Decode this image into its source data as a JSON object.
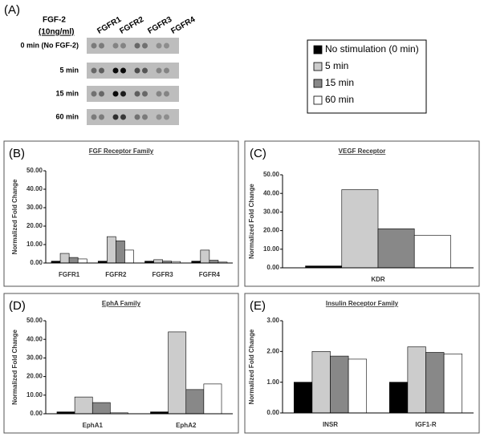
{
  "blot": {
    "panel": "(A)",
    "treatment": "FGF-2",
    "dose": "(10ng/ml)",
    "columns": [
      "FGFR1",
      "FGFR2",
      "FGFR3",
      "FGFR4"
    ],
    "rows": [
      "0 min (No FGF-2)",
      "5 min",
      "15 min",
      "60 min"
    ]
  },
  "chart_data": [
    {
      "type": "bar",
      "panel": "(B)",
      "title": "FGF Receptor Family",
      "y_label": "Normalized Fold Change",
      "categories": [
        "FGFR1",
        "FGFR2",
        "FGFR3",
        "FGFR4"
      ],
      "series": [
        {
          "name": "No stimulation (0 min)",
          "color": "#000000",
          "values": [
            1,
            1,
            1,
            1
          ]
        },
        {
          "name": "5 min",
          "color": "#cccccc",
          "values": [
            5.2,
            14.3,
            1.8,
            7
          ]
        },
        {
          "name": "15 min",
          "color": "#888888",
          "values": [
            3,
            12,
            1,
            1.5
          ]
        },
        {
          "name": "60 min",
          "color": "#ffffff",
          "values": [
            2.2,
            7,
            0.8,
            0.5
          ]
        }
      ],
      "ylim": [
        0,
        50
      ],
      "yticks": [
        {
          "value": 0,
          "label": "0.00"
        },
        {
          "value": 10,
          "label": "10.00"
        },
        {
          "value": 20,
          "label": "20.00"
        },
        {
          "value": 30,
          "label": "30.00"
        },
        {
          "value": 40,
          "label": "40.00"
        },
        {
          "value": 50,
          "label": "50.00"
        }
      ]
    },
    {
      "type": "bar",
      "panel": "(C)",
      "title": "VEGF Receptor",
      "y_label": "Normalized Fold Change",
      "categories": [
        "KDR"
      ],
      "series": [
        {
          "name": "No stimulation (0 min)",
          "color": "#000000",
          "values": [
            1
          ]
        },
        {
          "name": "5 min",
          "color": "#cccccc",
          "values": [
            42
          ]
        },
        {
          "name": "15 min",
          "color": "#888888",
          "values": [
            21
          ]
        },
        {
          "name": "60 min",
          "color": "#ffffff",
          "values": [
            17.5
          ]
        }
      ],
      "ylim": [
        0,
        50
      ],
      "yticks": [
        {
          "value": 0,
          "label": "0.00"
        },
        {
          "value": 10,
          "label": "10.00"
        },
        {
          "value": 20,
          "label": "20.00"
        },
        {
          "value": 30,
          "label": "30.00"
        },
        {
          "value": 40,
          "label": "40.00"
        },
        {
          "value": 50,
          "label": "50.00"
        }
      ]
    },
    {
      "type": "bar",
      "panel": "(D)",
      "title": "EphA Family",
      "y_label": "Normalized Fold Change",
      "categories": [
        "EphA1",
        "EphA2"
      ],
      "series": [
        {
          "name": "No stimulation (0 min)",
          "color": "#000000",
          "values": [
            1,
            1
          ]
        },
        {
          "name": "5 min",
          "color": "#cccccc",
          "values": [
            9,
            44
          ]
        },
        {
          "name": "15 min",
          "color": "#888888",
          "values": [
            6,
            13
          ]
        },
        {
          "name": "60 min",
          "color": "#ffffff",
          "values": [
            0.5,
            16
          ]
        }
      ],
      "ylim": [
        0,
        50
      ],
      "yticks": [
        {
          "value": 0,
          "label": "0.00"
        },
        {
          "value": 10,
          "label": "10.00"
        },
        {
          "value": 20,
          "label": "20.00"
        },
        {
          "value": 30,
          "label": "30.00"
        },
        {
          "value": 40,
          "label": "40.00"
        },
        {
          "value": 50,
          "label": "50.00"
        }
      ]
    },
    {
      "type": "bar",
      "panel": "(E)",
      "title": "Insulin Receptor Family",
      "y_label": "Normalized Fold Change",
      "categories": [
        "INSR",
        "IGF1-R"
      ],
      "series": [
        {
          "name": "No stimulation (0 min)",
          "color": "#000000",
          "values": [
            1,
            1
          ]
        },
        {
          "name": "5 min",
          "color": "#cccccc",
          "values": [
            2,
            2.15
          ]
        },
        {
          "name": "15 min",
          "color": "#888888",
          "values": [
            1.85,
            1.97
          ]
        },
        {
          "name": "60 min",
          "color": "#ffffff",
          "values": [
            1.75,
            1.92
          ]
        }
      ],
      "ylim": [
        0,
        3
      ],
      "yticks": [
        {
          "value": 0,
          "label": "0.00"
        },
        {
          "value": 1,
          "label": "1.00"
        },
        {
          "value": 2,
          "label": "2.00"
        },
        {
          "value": 3,
          "label": "3.00"
        }
      ]
    }
  ]
}
